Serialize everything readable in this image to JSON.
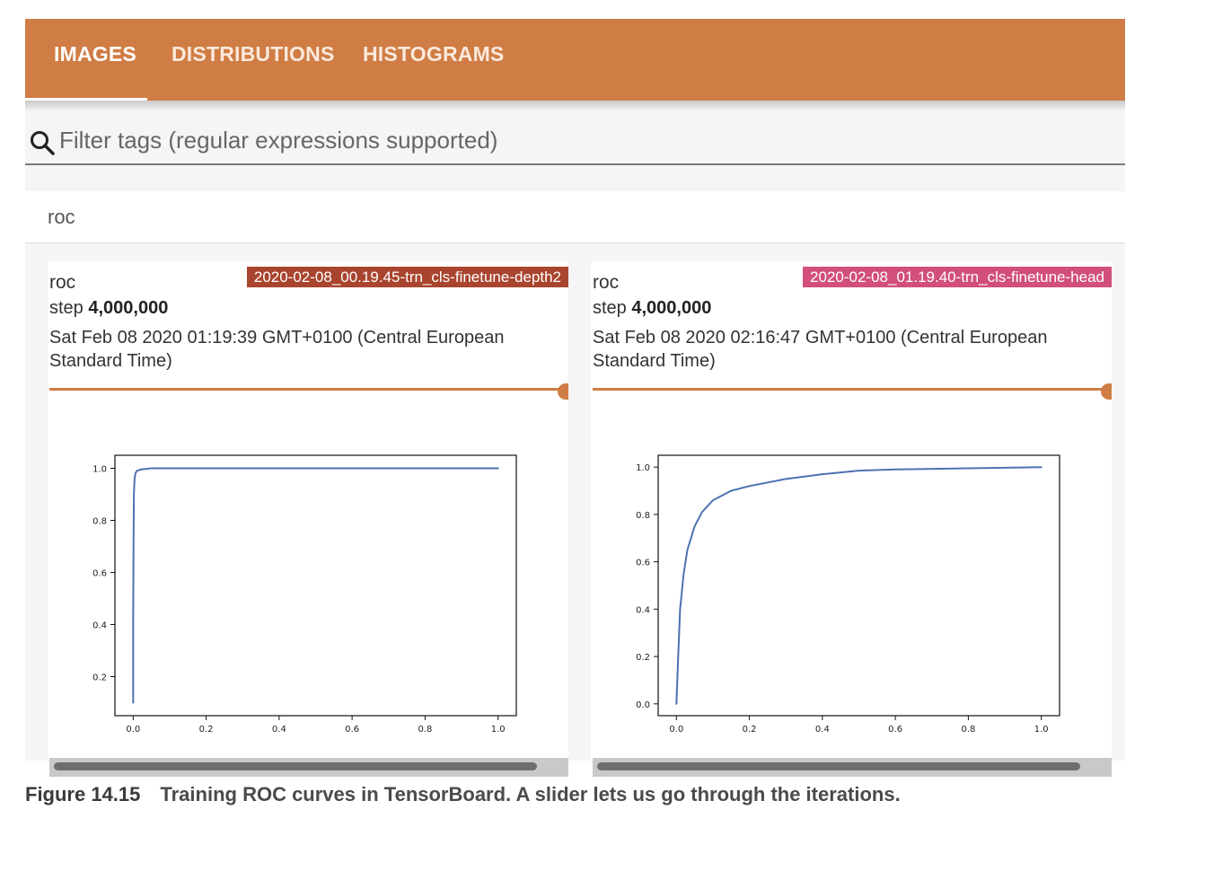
{
  "tabs": [
    {
      "label": "IMAGES",
      "active": true
    },
    {
      "label": "DISTRIBUTIONS",
      "active": false
    },
    {
      "label": "HISTOGRAMS",
      "active": false
    }
  ],
  "filter": {
    "placeholder": "Filter tags (regular expressions supported)",
    "value": ""
  },
  "section": {
    "title": "roc"
  },
  "cards": [
    {
      "title": "roc",
      "run": "2020-02-08_00.19.45-trn_cls-finetune-depth2",
      "run_color": "#a9452f",
      "step_label": "step",
      "step_value": "4,000,000",
      "timestamp": "Sat Feb 08 2020 01:19:39 GMT+0100 (Central European Standard Time)",
      "slider_fraction": 1.0
    },
    {
      "title": "roc",
      "run": "2020-02-08_01.19.40-trn_cls-finetune-head",
      "run_color": "#d24f7a",
      "step_label": "step",
      "step_value": "4,000,000",
      "timestamp": "Sat Feb 08 2020 02:16:47 GMT+0100 (Central European Standard Time)",
      "slider_fraction": 1.0
    }
  ],
  "chart_data": [
    {
      "type": "line",
      "title": "",
      "xlabel": "",
      "ylabel": "",
      "xlim": [
        -0.05,
        1.05
      ],
      "ylim": [
        0.05,
        1.05
      ],
      "xticks": [
        "0.0",
        "0.2",
        "0.4",
        "0.6",
        "0.8",
        "1.0"
      ],
      "yticks": [
        "0.2",
        "0.4",
        "0.6",
        "0.8",
        "1.0"
      ],
      "grid": false,
      "color": "#4c72b0",
      "series": [
        {
          "x": [
            0.0,
            0.0,
            0.001,
            0.002,
            0.004,
            0.006,
            0.01,
            0.02,
            0.05,
            0.2,
            0.5,
            1.0
          ],
          "y": [
            0.1,
            0.4,
            0.7,
            0.9,
            0.96,
            0.98,
            0.99,
            0.995,
            1.0,
            1.0,
            1.0,
            1.0
          ]
        }
      ]
    },
    {
      "type": "line",
      "title": "",
      "xlabel": "",
      "ylabel": "",
      "xlim": [
        -0.05,
        1.05
      ],
      "ylim": [
        -0.05,
        1.05
      ],
      "xticks": [
        "0.0",
        "0.2",
        "0.4",
        "0.6",
        "0.8",
        "1.0"
      ],
      "yticks": [
        "0.0",
        "0.2",
        "0.4",
        "0.6",
        "0.8",
        "1.0"
      ],
      "grid": false,
      "color": "#4c72b0",
      "series": [
        {
          "x": [
            0.0,
            0.005,
            0.01,
            0.02,
            0.03,
            0.05,
            0.07,
            0.1,
            0.15,
            0.2,
            0.3,
            0.4,
            0.5,
            0.6,
            0.8,
            1.0
          ],
          "y": [
            0.0,
            0.2,
            0.4,
            0.55,
            0.65,
            0.75,
            0.81,
            0.86,
            0.9,
            0.92,
            0.95,
            0.97,
            0.985,
            0.99,
            0.995,
            1.0
          ]
        }
      ]
    }
  ],
  "caption": {
    "figure_number": "Figure 14.15",
    "text": "Training ROC curves in TensorBoard. A slider lets us go through the iterations."
  }
}
